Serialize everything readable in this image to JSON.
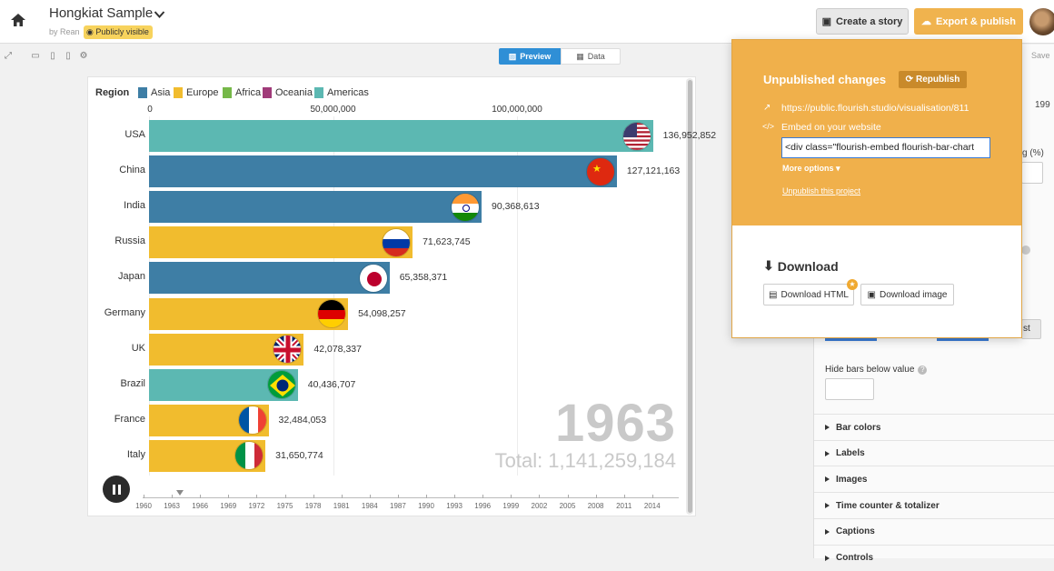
{
  "header": {
    "title": "Hongkiat Sample",
    "byline": "by Rean",
    "visibility": "Publicly visible",
    "create_story": "Create a story",
    "export_publish": "Export & publish"
  },
  "tabs": {
    "preview": "Preview",
    "data": "Data"
  },
  "chart_data": {
    "type": "bar",
    "legend_title": "Region",
    "legend": [
      {
        "name": "Asia",
        "color": "#3e7ea5"
      },
      {
        "name": "Europe",
        "color": "#f1bc2e"
      },
      {
        "name": "Africa",
        "color": "#76b849"
      },
      {
        "name": "Oceania",
        "color": "#a03b79"
      },
      {
        "name": "Americas",
        "color": "#5cb8b2"
      }
    ],
    "axis_ticks": [
      "0",
      "50,000,000",
      "100,000,000"
    ],
    "axis_tick_values": [
      0,
      50000000,
      100000000
    ],
    "xlim": [
      0,
      140000000
    ],
    "categories": [
      "USA",
      "China",
      "India",
      "Russia",
      "Japan",
      "Germany",
      "UK",
      "Brazil",
      "France",
      "Italy"
    ],
    "values": [
      136952852,
      127121163,
      90368613,
      71623745,
      65358371,
      54098257,
      42078337,
      40436707,
      32484053,
      31650774
    ],
    "value_labels": [
      "136,952,852",
      "127,121,163",
      "90,368,613",
      "71,623,745",
      "65,358,371",
      "54,098,257",
      "42,078,337",
      "40,436,707",
      "32,484,053",
      "31,650,774"
    ],
    "regions": [
      "Americas",
      "Asia",
      "Asia",
      "Europe",
      "Asia",
      "Europe",
      "Europe",
      "Americas",
      "Europe",
      "Europe"
    ],
    "year": "1963",
    "total": "Total: 1,141,259,184",
    "timeline_years": [
      "1960",
      "1963",
      "1966",
      "1969",
      "1972",
      "1975",
      "1978",
      "1981",
      "1984",
      "1987",
      "1990",
      "1993",
      "1996",
      "1999",
      "2002",
      "2005",
      "2008",
      "2011",
      "2014"
    ]
  },
  "publish_popup": {
    "title": "Unpublished changes",
    "republish": "Republish",
    "url": "https://public.flourish.studio/visualisation/811",
    "embed_label": "Embed on your website",
    "embed_code": "<div class=\"flourish-embed flourish-bar-chart",
    "more_options": "More options",
    "unpublish": "Unpublish this project",
    "download_title": "Download",
    "download_html": "Download HTML",
    "download_image": "Download image"
  },
  "right_panel": {
    "hide_bars_label": "Hide bars below value",
    "sections": [
      "Bar colors",
      "Labels",
      "Images",
      "Time counter & totalizer",
      "Captions",
      "Controls"
    ],
    "partial_saved": "Save",
    "partial_year": "199",
    "partial_pct": "g (%)",
    "partial_st": "st"
  }
}
